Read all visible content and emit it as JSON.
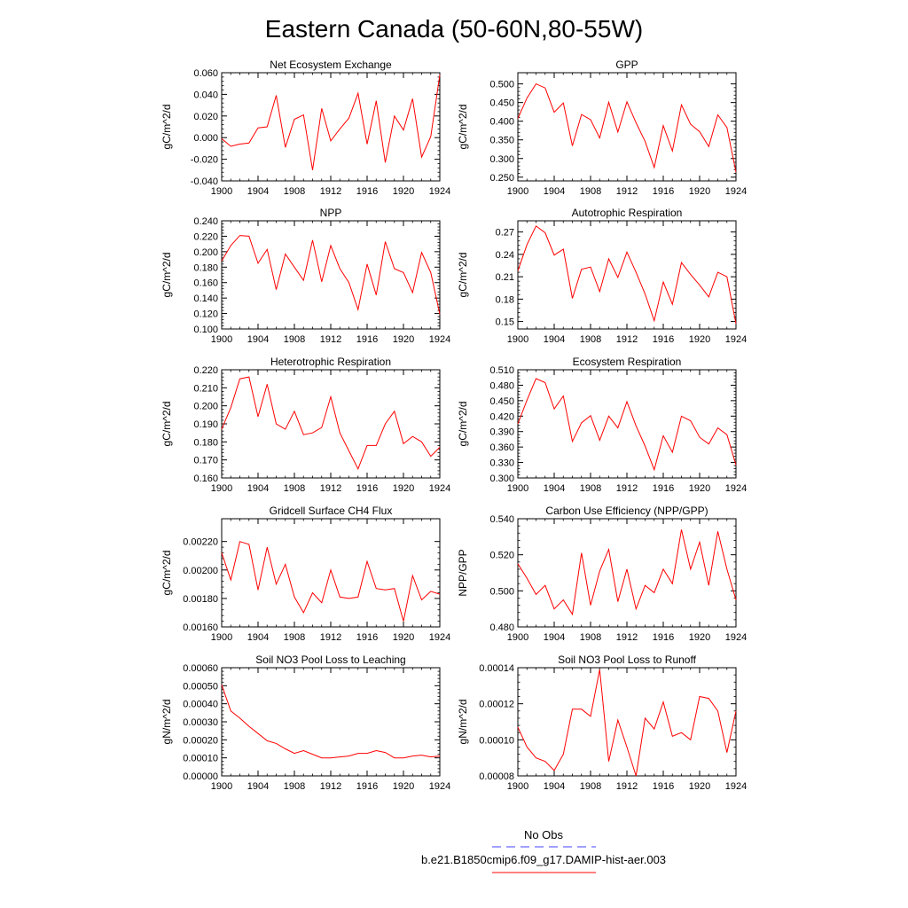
{
  "title": "Eastern Canada (50-60N,80-55W)",
  "legend": {
    "items": [
      {
        "label": "No Obs",
        "color": "#4040ff",
        "dashed": true
      },
      {
        "label": "b.e21.B1850cmip6.f09_g17.DAMIP-hist-aer.003",
        "color": "#ff0000",
        "dashed": false
      }
    ]
  },
  "chart_data": [
    {
      "type": "line",
      "title": "Net Ecosystem Exchange",
      "ylabel": "gC/m^2/d",
      "xlabel": "",
      "xlim": [
        1900,
        1924
      ],
      "xticks": [
        1900,
        1904,
        1908,
        1912,
        1916,
        1920,
        1924
      ],
      "ylim": [
        -0.04,
        0.06
      ],
      "yticks": [
        -0.04,
        -0.02,
        0.0,
        0.02,
        0.04,
        0.06
      ],
      "ytick_labels": [
        "-0.040",
        "-0.020",
        "0.000",
        "0.020",
        "0.040",
        "0.060"
      ],
      "series": [
        {
          "color": "#ff0000",
          "x": [
            1900,
            1901,
            1902,
            1903,
            1904,
            1905,
            1906,
            1907,
            1908,
            1909,
            1910,
            1911,
            1912,
            1913,
            1914,
            1915,
            1916,
            1917,
            1918,
            1919,
            1920,
            1921,
            1922,
            1923,
            1924
          ],
          "values": [
            -0.001,
            -0.008,
            -0.006,
            -0.005,
            0.009,
            0.01,
            0.039,
            -0.009,
            0.017,
            0.021,
            -0.03,
            0.027,
            -0.003,
            0.008,
            0.018,
            0.041,
            -0.006,
            0.034,
            -0.023,
            0.02,
            0.007,
            0.036,
            -0.018,
            0.001,
            0.058
          ]
        }
      ]
    },
    {
      "type": "line",
      "title": "GPP",
      "ylabel": "gC/m^2/d",
      "xlabel": "",
      "xlim": [
        1900,
        1924
      ],
      "xticks": [
        1900,
        1904,
        1908,
        1912,
        1916,
        1920,
        1924
      ],
      "ylim": [
        0.24,
        0.53
      ],
      "yticks": [
        0.25,
        0.3,
        0.35,
        0.4,
        0.45,
        0.5
      ],
      "ytick_labels": [
        "0.250",
        "0.300",
        "0.350",
        "0.400",
        "0.450",
        "0.500"
      ],
      "series": [
        {
          "color": "#ff0000",
          "x": [
            1900,
            1901,
            1902,
            1903,
            1904,
            1905,
            1906,
            1907,
            1908,
            1909,
            1910,
            1911,
            1912,
            1913,
            1914,
            1915,
            1916,
            1917,
            1918,
            1919,
            1920,
            1921,
            1922,
            1923,
            1924
          ],
          "values": [
            0.407,
            0.462,
            0.5,
            0.489,
            0.424,
            0.449,
            0.334,
            0.418,
            0.404,
            0.355,
            0.451,
            0.371,
            0.452,
            0.396,
            0.346,
            0.276,
            0.388,
            0.32,
            0.444,
            0.392,
            0.372,
            0.332,
            0.417,
            0.383,
            0.263
          ]
        }
      ]
    },
    {
      "type": "line",
      "title": "NPP",
      "ylabel": "gC/m^2/d",
      "xlabel": "",
      "xlim": [
        1900,
        1924
      ],
      "xticks": [
        1900,
        1904,
        1908,
        1912,
        1916,
        1920,
        1924
      ],
      "ylim": [
        0.1,
        0.24
      ],
      "yticks": [
        0.1,
        0.12,
        0.14,
        0.16,
        0.18,
        0.2,
        0.22,
        0.24
      ],
      "ytick_labels": [
        "0.100",
        "0.120",
        "0.140",
        "0.160",
        "0.180",
        "0.200",
        "0.220",
        "0.240"
      ],
      "series": [
        {
          "color": "#ff0000",
          "x": [
            1900,
            1901,
            1902,
            1903,
            1904,
            1905,
            1906,
            1907,
            1908,
            1909,
            1910,
            1911,
            1912,
            1913,
            1914,
            1915,
            1916,
            1917,
            1918,
            1919,
            1920,
            1921,
            1922,
            1923,
            1924
          ],
          "values": [
            0.188,
            0.208,
            0.221,
            0.22,
            0.185,
            0.203,
            0.151,
            0.197,
            0.18,
            0.163,
            0.215,
            0.161,
            0.208,
            0.178,
            0.16,
            0.125,
            0.184,
            0.144,
            0.213,
            0.178,
            0.173,
            0.147,
            0.199,
            0.173,
            0.119
          ]
        }
      ]
    },
    {
      "type": "line",
      "title": "Autotrophic Respiration",
      "ylabel": "gC/m^2/d",
      "xlabel": "",
      "xlim": [
        1900,
        1924
      ],
      "xticks": [
        1900,
        1904,
        1908,
        1912,
        1916,
        1920,
        1924
      ],
      "ylim": [
        0.14,
        0.285
      ],
      "yticks": [
        0.15,
        0.18,
        0.21,
        0.24,
        0.27
      ],
      "ytick_labels": [
        "0.15",
        "0.18",
        "0.21",
        "0.24",
        "0.27"
      ],
      "series": [
        {
          "color": "#ff0000",
          "x": [
            1900,
            1901,
            1902,
            1903,
            1904,
            1905,
            1906,
            1907,
            1908,
            1909,
            1910,
            1911,
            1912,
            1913,
            1914,
            1915,
            1916,
            1917,
            1918,
            1919,
            1920,
            1921,
            1922,
            1923,
            1924
          ],
          "values": [
            0.218,
            0.253,
            0.278,
            0.269,
            0.239,
            0.247,
            0.181,
            0.22,
            0.223,
            0.19,
            0.234,
            0.209,
            0.243,
            0.216,
            0.187,
            0.151,
            0.203,
            0.173,
            0.229,
            0.213,
            0.199,
            0.183,
            0.216,
            0.21,
            0.147
          ]
        }
      ]
    },
    {
      "type": "line",
      "title": "Heterotrophic Respiration",
      "ylabel": "gC/m^2/d",
      "xlabel": "",
      "xlim": [
        1900,
        1924
      ],
      "xticks": [
        1900,
        1904,
        1908,
        1912,
        1916,
        1920,
        1924
      ],
      "ylim": [
        0.16,
        0.22
      ],
      "yticks": [
        0.16,
        0.17,
        0.18,
        0.19,
        0.2,
        0.21,
        0.22
      ],
      "ytick_labels": [
        "0.160",
        "0.170",
        "0.180",
        "0.190",
        "0.200",
        "0.210",
        "0.220"
      ],
      "series": [
        {
          "color": "#ff0000",
          "x": [
            1900,
            1901,
            1902,
            1903,
            1904,
            1905,
            1906,
            1907,
            1908,
            1909,
            1910,
            1911,
            1912,
            1913,
            1914,
            1915,
            1916,
            1917,
            1918,
            1919,
            1920,
            1921,
            1922,
            1923,
            1924
          ],
          "values": [
            0.187,
            0.199,
            0.215,
            0.216,
            0.194,
            0.212,
            0.19,
            0.187,
            0.197,
            0.184,
            0.185,
            0.188,
            0.205,
            0.185,
            0.175,
            0.165,
            0.178,
            0.178,
            0.19,
            0.197,
            0.179,
            0.183,
            0.18,
            0.172,
            0.177
          ]
        }
      ]
    },
    {
      "type": "line",
      "title": "Ecosystem Respiration",
      "ylabel": "gC/m^2/d",
      "xlabel": "",
      "xlim": [
        1900,
        1924
      ],
      "xticks": [
        1900,
        1904,
        1908,
        1912,
        1916,
        1920,
        1924
      ],
      "ylim": [
        0.3,
        0.51
      ],
      "yticks": [
        0.3,
        0.33,
        0.36,
        0.39,
        0.42,
        0.45,
        0.48,
        0.51
      ],
      "ytick_labels": [
        "0.300",
        "0.330",
        "0.360",
        "0.390",
        "0.420",
        "0.450",
        "0.480",
        "0.510"
      ],
      "series": [
        {
          "color": "#ff0000",
          "x": [
            1900,
            1901,
            1902,
            1903,
            1904,
            1905,
            1906,
            1907,
            1908,
            1909,
            1910,
            1911,
            1912,
            1913,
            1914,
            1915,
            1916,
            1917,
            1918,
            1919,
            1920,
            1921,
            1922,
            1923,
            1924
          ],
          "values": [
            0.405,
            0.451,
            0.493,
            0.485,
            0.434,
            0.459,
            0.371,
            0.407,
            0.421,
            0.373,
            0.42,
            0.397,
            0.448,
            0.401,
            0.362,
            0.316,
            0.382,
            0.35,
            0.42,
            0.411,
            0.379,
            0.366,
            0.397,
            0.384,
            0.325
          ]
        }
      ]
    },
    {
      "type": "line",
      "title": "Gridcell Surface CH4 Flux",
      "ylabel": "gC/m^2/d",
      "xlabel": "",
      "xlim": [
        1900,
        1924
      ],
      "xticks": [
        1900,
        1904,
        1908,
        1912,
        1916,
        1920,
        1924
      ],
      "ylim": [
        0.0016,
        0.00236
      ],
      "yticks": [
        0.0016,
        0.0018,
        0.002,
        0.0022
      ],
      "ytick_labels": [
        "0.00160",
        "0.00180",
        "0.00200",
        "0.00220"
      ],
      "series": [
        {
          "color": "#ff0000",
          "x": [
            1900,
            1901,
            1902,
            1903,
            1904,
            1905,
            1906,
            1907,
            1908,
            1909,
            1910,
            1911,
            1912,
            1913,
            1914,
            1915,
            1916,
            1917,
            1918,
            1919,
            1920,
            1921,
            1922,
            1923,
            1924
          ],
          "values": [
            0.00212,
            0.00193,
            0.0022,
            0.00218,
            0.00186,
            0.00216,
            0.0019,
            0.00204,
            0.00181,
            0.0017,
            0.00184,
            0.00177,
            0.002,
            0.00181,
            0.0018,
            0.00181,
            0.00206,
            0.00187,
            0.00186,
            0.00187,
            0.00164,
            0.00196,
            0.00179,
            0.00185,
            0.00183
          ]
        }
      ]
    },
    {
      "type": "line",
      "title": "Carbon Use Efficiency (NPP/GPP)",
      "ylabel": "NPP/GPP",
      "xlabel": "",
      "xlim": [
        1900,
        1924
      ],
      "xticks": [
        1900,
        1904,
        1908,
        1912,
        1916,
        1920,
        1924
      ],
      "ylim": [
        0.48,
        0.54
      ],
      "yticks": [
        0.48,
        0.5,
        0.52,
        0.54
      ],
      "ytick_labels": [
        "0.480",
        "0.500",
        "0.520",
        "0.540"
      ],
      "series": [
        {
          "color": "#ff0000",
          "x": [
            1900,
            1901,
            1902,
            1903,
            1904,
            1905,
            1906,
            1907,
            1908,
            1909,
            1910,
            1911,
            1912,
            1913,
            1914,
            1915,
            1916,
            1917,
            1918,
            1919,
            1920,
            1921,
            1922,
            1923,
            1924
          ],
          "values": [
            0.515,
            0.507,
            0.498,
            0.503,
            0.49,
            0.495,
            0.487,
            0.521,
            0.492,
            0.511,
            0.523,
            0.494,
            0.512,
            0.49,
            0.503,
            0.499,
            0.512,
            0.504,
            0.534,
            0.512,
            0.527,
            0.503,
            0.533,
            0.512,
            0.495
          ]
        }
      ]
    },
    {
      "type": "line",
      "title": "Soil NO3 Pool Loss to Leaching",
      "ylabel": "gN/m^2/d",
      "xlabel": "",
      "xlim": [
        1900,
        1924
      ],
      "xticks": [
        1900,
        1904,
        1908,
        1912,
        1916,
        1920,
        1924
      ],
      "ylim": [
        0.0,
        0.0006
      ],
      "yticks": [
        0.0,
        0.0001,
        0.0002,
        0.0003,
        0.0004,
        0.0005,
        0.0006
      ],
      "ytick_labels": [
        "0.00000",
        "0.00010",
        "0.00020",
        "0.00030",
        "0.00040",
        "0.00050",
        "0.00060"
      ],
      "series": [
        {
          "color": "#ff0000",
          "x": [
            1900,
            1901,
            1902,
            1903,
            1904,
            1905,
            1906,
            1907,
            1908,
            1909,
            1910,
            1911,
            1912,
            1913,
            1914,
            1915,
            1916,
            1917,
            1918,
            1919,
            1920,
            1921,
            1922,
            1923,
            1924
          ],
          "values": [
            0.000505,
            0.00036,
            0.00032,
            0.000275,
            0.000235,
            0.000195,
            0.00018,
            0.00015,
            0.000125,
            0.00014,
            0.00012,
            0.0001,
            0.0001,
            0.000105,
            0.00011,
            0.000125,
            0.000125,
            0.00014,
            0.00013,
            0.0001,
            0.0001,
            0.00011,
            0.000115,
            0.000105,
            0.00011
          ]
        }
      ]
    },
    {
      "type": "line",
      "title": "Soil NO3 Pool Loss to Runoff",
      "ylabel": "gN/m^2/d",
      "xlabel": "",
      "xlim": [
        1900,
        1924
      ],
      "xticks": [
        1900,
        1904,
        1908,
        1912,
        1916,
        1920,
        1924
      ],
      "ylim": [
        8e-05,
        0.00014
      ],
      "yticks": [
        8e-05,
        0.0001,
        0.00012,
        0.00014
      ],
      "ytick_labels": [
        "0.00008",
        "0.00010",
        "0.00012",
        "0.00014"
      ],
      "series": [
        {
          "color": "#ff0000",
          "x": [
            1900,
            1901,
            1902,
            1903,
            1904,
            1905,
            1906,
            1907,
            1908,
            1909,
            1910,
            1911,
            1912,
            1913,
            1914,
            1915,
            1916,
            1917,
            1918,
            1919,
            1920,
            1921,
            1922,
            1923,
            1924
          ],
          "values": [
            0.000107,
            9.6e-05,
            9e-05,
            8.8e-05,
            8.3e-05,
            9.2e-05,
            0.000117,
            0.000117,
            0.000113,
            0.000139,
            8.8e-05,
            0.000111,
            9.6e-05,
            8e-05,
            0.000112,
            0.000106,
            0.000121,
            0.000102,
            0.000104,
            0.0001,
            0.000124,
            0.000123,
            0.000116,
            9.3e-05,
            0.000116
          ]
        }
      ]
    }
  ]
}
